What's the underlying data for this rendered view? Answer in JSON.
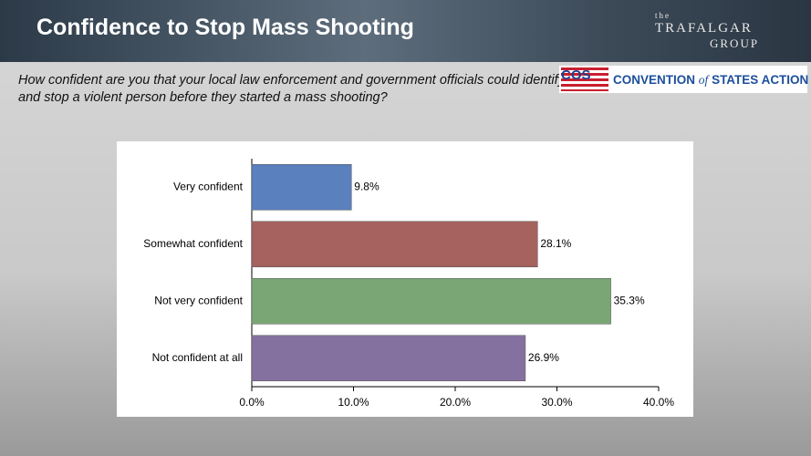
{
  "logos": {
    "trafalgar": {
      "small": "the",
      "name": "TRAFALGAR",
      "group": "GROUP"
    },
    "cos": {
      "mark": "COS",
      "name": "CONVENTION",
      "of": "of",
      "rest": "STATES ACTION"
    }
  },
  "chart_data": {
    "type": "bar",
    "orientation": "horizontal",
    "title": "Confidence to Stop Mass Shooting",
    "subtitle": "How confident are you that your local law enforcement and government officials could identify and stop a violent person before they started a mass shooting?",
    "categories": [
      "Very confident",
      "Somewhat confident",
      "Not very confident",
      "Not confident at all"
    ],
    "values": [
      9.8,
      28.1,
      35.3,
      26.9
    ],
    "value_labels": [
      "9.8%",
      "28.1%",
      "35.3%",
      "26.9%"
    ],
    "colors": [
      "#5a80be",
      "#a5625e",
      "#7aa676",
      "#8571a0"
    ],
    "xlim": [
      0,
      40
    ],
    "xticks": [
      {
        "value": 0,
        "label": "0.0%"
      },
      {
        "value": 10,
        "label": "10.0%"
      },
      {
        "value": 20,
        "label": "20.0%"
      },
      {
        "value": 30,
        "label": "30.0%"
      },
      {
        "value": 40,
        "label": "40.0%"
      }
    ]
  }
}
